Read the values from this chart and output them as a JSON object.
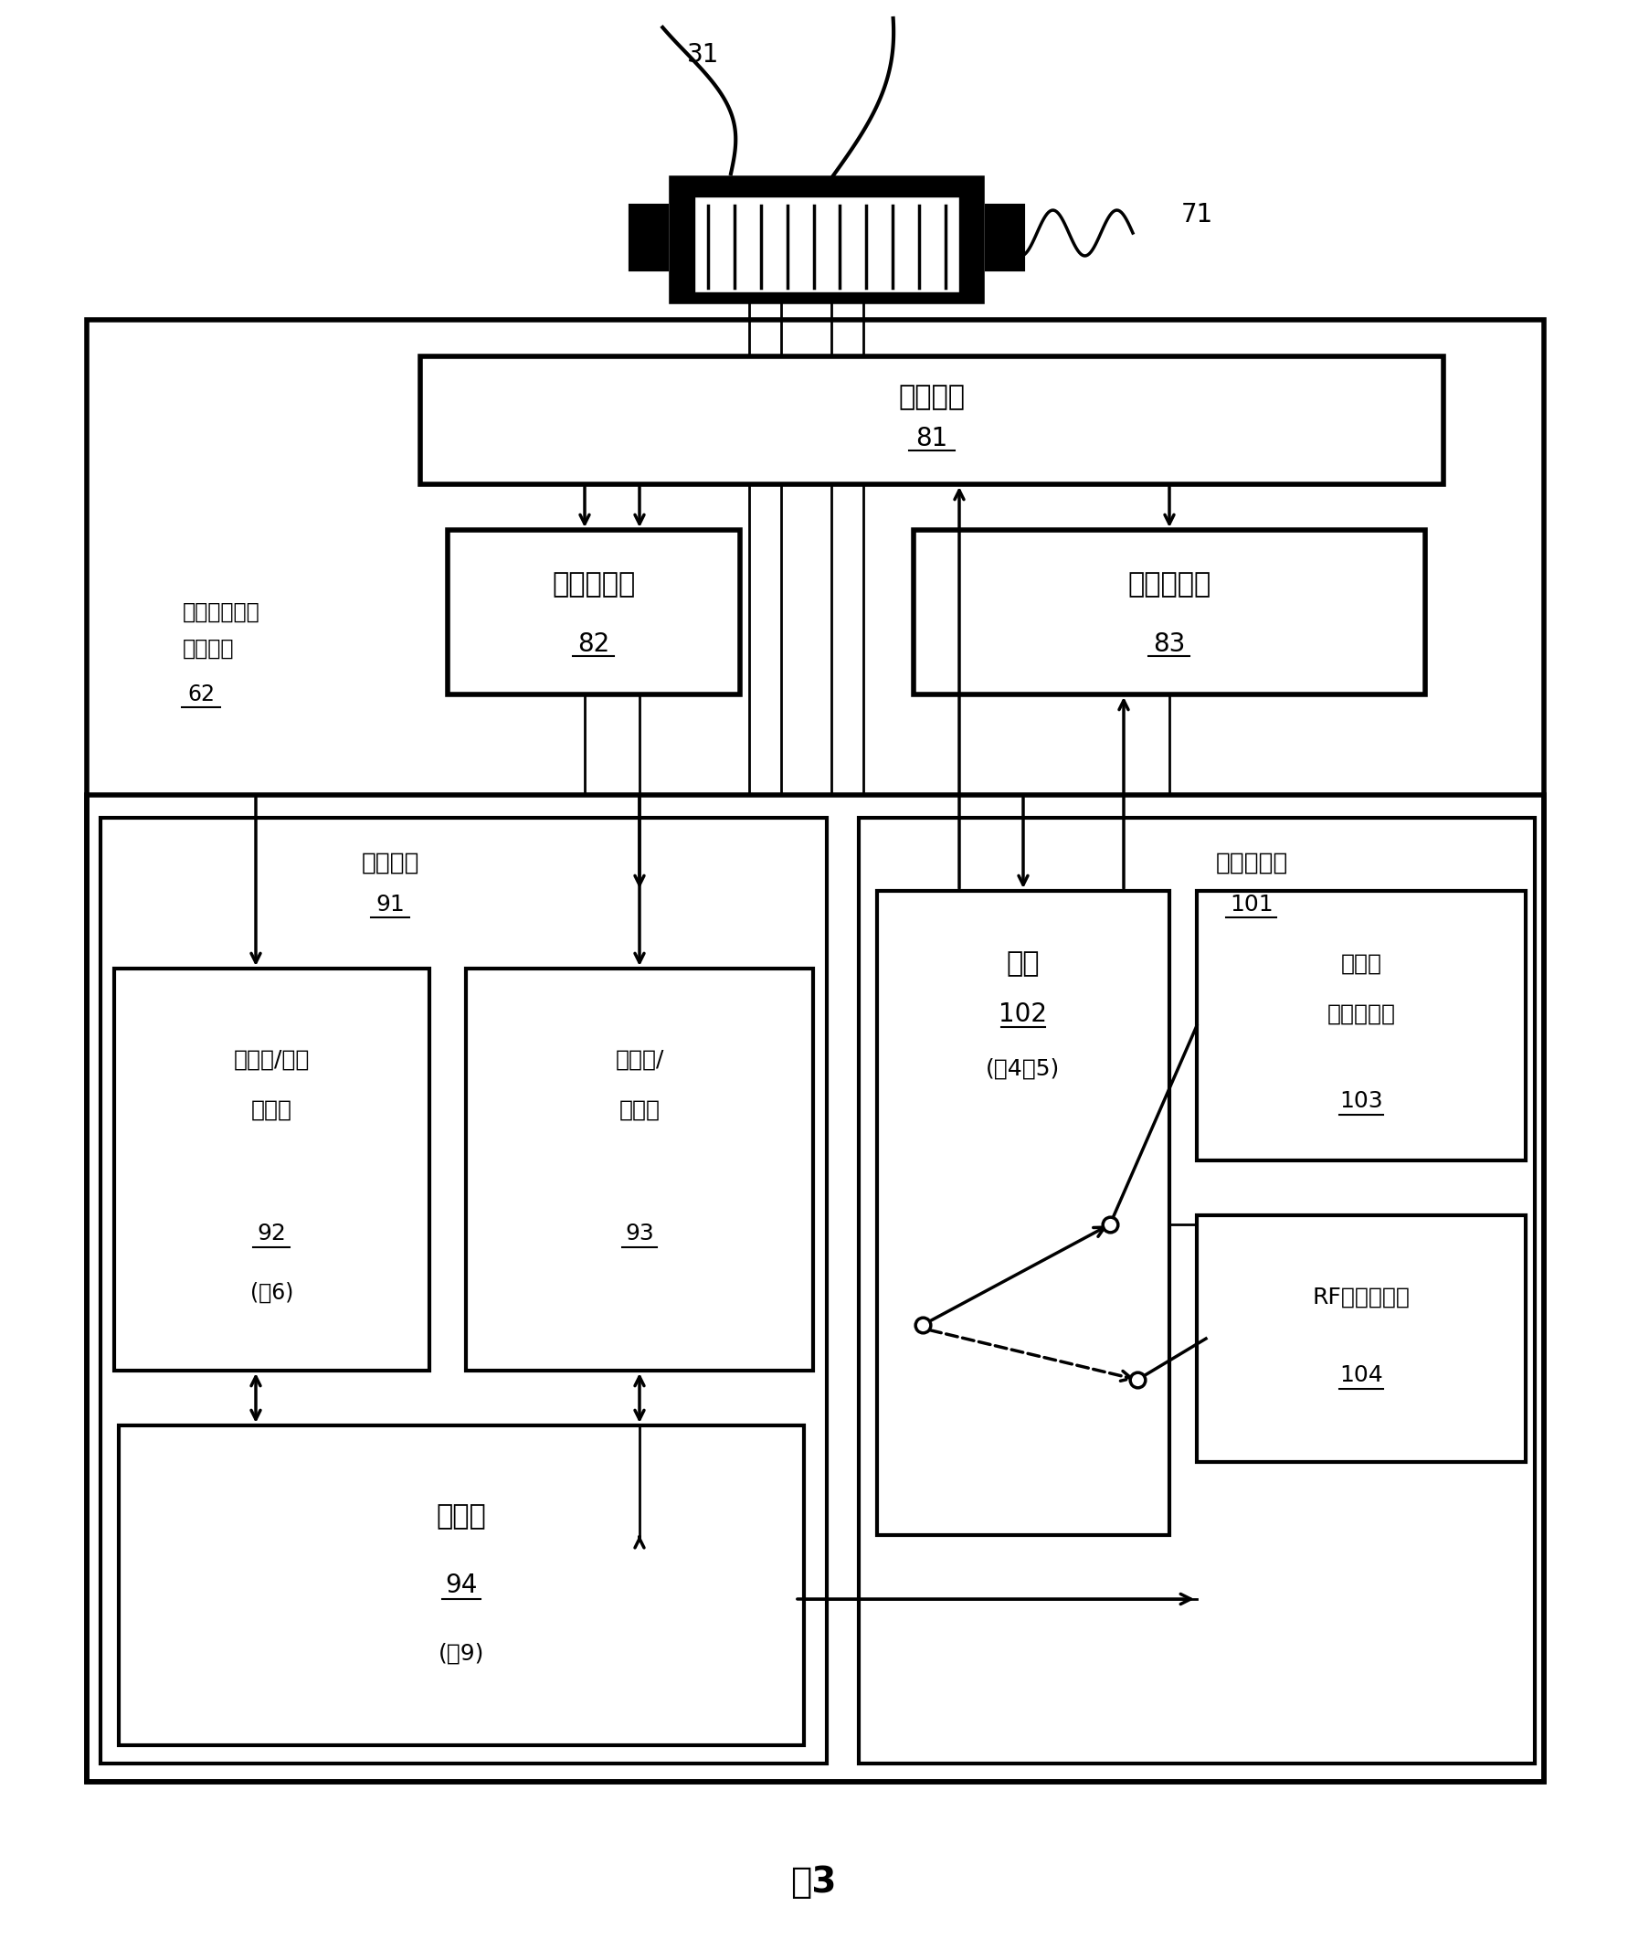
{
  "title": "图3",
  "bg": "#ffffff",
  "label_31": "31",
  "label_71": "71",
  "comm_if_label": "通信接口",
  "comm_if_num": "81",
  "br_label": "宽带接收器",
  "br_num": "82",
  "am_label": "幅度调制器",
  "am_num": "83",
  "outer_l1": "外来串扰测试",
  "outer_l2": "信号单元",
  "outer_num": "62",
  "cm_label": "控制模块",
  "cm_num": "91",
  "tm_label": "收发器模块",
  "tm_num": "101",
  "kp_l1": "小键盘/模式",
  "kp_l2": "指示器",
  "kp_num": "92",
  "kp_note": "(图6)",
  "en_l1": "编码器/",
  "en_l2": "解码器",
  "en_num": "93",
  "sw_label": "开关",
  "sw_num": "102",
  "sw_note": "(图4和5)",
  "rs_l1": "电阻性",
  "rs_l2": "信号端接器",
  "rs_num": "103",
  "rf_label": "RF信号生成器",
  "rf_num": "104",
  "ct_label": "控制器",
  "ct_num": "94",
  "ct_note": "(图9)"
}
